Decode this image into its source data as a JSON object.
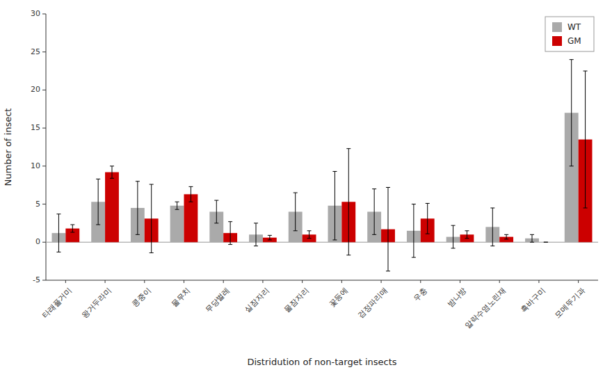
{
  "chart_data": {
    "type": "bar",
    "xlabel": "Distridution of non-target insects",
    "ylabel": "Number of insect",
    "categories": [
      "타래풀거미",
      "왕거두라미",
      "콩중이",
      "물무치",
      "무당벌레",
      "실잠자리",
      "물잠자리",
      "꽃등에",
      "검정파리매",
      "우충",
      "밤나방",
      "알락수염노린재",
      "흑바구미",
      "모메뚜기과"
    ],
    "series": [
      {
        "name": "WT",
        "color": "#AAAAAA",
        "values": [
          1.2,
          5.3,
          4.5,
          4.8,
          4.0,
          1.0,
          4.0,
          4.8,
          4.0,
          1.5,
          0.7,
          2.0,
          0.5,
          17.0
        ],
        "errors": [
          2.5,
          3.0,
          3.5,
          0.5,
          1.5,
          1.5,
          2.5,
          4.5,
          3.0,
          3.5,
          1.5,
          2.5,
          0.5,
          7.0
        ]
      },
      {
        "name": "GM",
        "color": "#CC0000",
        "values": [
          1.8,
          9.2,
          3.1,
          6.3,
          1.2,
          0.6,
          1.0,
          5.3,
          1.7,
          3.1,
          1.0,
          0.7,
          0.0,
          13.5
        ],
        "errors": [
          0.5,
          0.8,
          4.5,
          1.0,
          1.5,
          0.3,
          0.5,
          7.0,
          5.5,
          2.0,
          0.5,
          0.3,
          0.0,
          9.0
        ]
      }
    ],
    "ylim": [
      -5,
      30
    ],
    "yticks": [
      -5,
      0,
      5,
      10,
      15,
      20,
      25,
      30
    ],
    "grid": false,
    "legend": "upper right"
  }
}
